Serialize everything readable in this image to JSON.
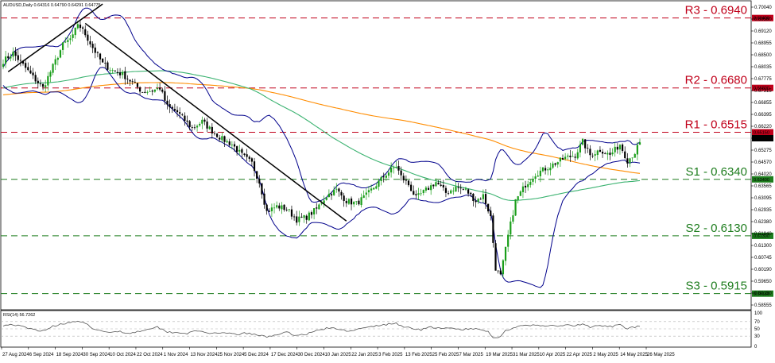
{
  "chart_data": [
    {
      "type": "candlestick",
      "header": "AUDUSD,Daily  0.64316 0.64790 0.64291 0.64775",
      "ylim": [
        0.5855,
        0.7004
      ],
      "y_ticks": [
        "0.70040",
        "0.69580",
        "0.69120",
        "0.68955",
        "0.68500",
        "0.68035",
        "0.67775",
        "0.67315",
        "0.66855",
        "0.66395",
        "0.66220",
        "0.65735",
        "0.65275",
        "0.64570",
        "0.64020",
        "0.63565",
        "0.63095",
        "0.62935",
        "0.62380",
        "0.61840",
        "0.61300",
        "0.60745",
        "0.60190",
        "0.59650",
        "0.59150",
        "0.58555"
      ],
      "price_tag": {
        "value": "0.64775",
        "price": 0.64775
      },
      "x_ticks": [
        "27 Aug 2024",
        "6 Sep 2024",
        "18 Sep 2024",
        "30 Sep 2024",
        "10 Oct 2024",
        "22 Oct 2024",
        "1 Nov 2024",
        "13 Nov 2024",
        "25 Nov 2024",
        "5 Dec 2024",
        "17 Dec 2024",
        "30 Dec 2024",
        "10 Jan 2025",
        "22 Jan 2025",
        "3 Feb 2025",
        "13 Feb 2025",
        "25 Feb 2025",
        "7 Mar 2025",
        "19 Mar 2025",
        "31 Mar 2025",
        "10 Apr 2025",
        "22 Apr 2025",
        "2 May 2025",
        "14 May 2025",
        "26 May 2025"
      ],
      "levels": [
        {
          "label": "R3 - 0.6940",
          "price": 0.694,
          "tag": "0.69400",
          "color": "#c0001a"
        },
        {
          "label": "R2 - 0.6680",
          "price": 0.668,
          "tag": "0.66800",
          "color": "#c0001a"
        },
        {
          "label": "R1 - 0.6515",
          "price": 0.6515,
          "tag": "0.65150",
          "color": "#c0001a"
        },
        {
          "label": "S1 - 0.6340",
          "price": 0.634,
          "tag": "0.63400",
          "color": "#1e7d1e"
        },
        {
          "label": "S2 - 0.6130",
          "price": 0.613,
          "tag": "0.61300",
          "color": "#1e7d1e"
        },
        {
          "label": "S3 - 0.5915",
          "price": 0.5915,
          "tag": "0.59150",
          "color": "#1e7d1e"
        }
      ],
      "anchors": [
        [
          0,
          0.678
        ],
        [
          4,
          0.681
        ],
        [
          8,
          0.6765
        ],
        [
          12,
          0.672
        ],
        [
          16,
          0.668
        ],
        [
          20,
          0.676
        ],
        [
          24,
          0.684
        ],
        [
          28,
          0.687
        ],
        [
          30,
          0.692
        ],
        [
          33,
          0.688
        ],
        [
          36,
          0.683
        ],
        [
          40,
          0.677
        ],
        [
          44,
          0.6745
        ],
        [
          48,
          0.673
        ],
        [
          52,
          0.67
        ],
        [
          56,
          0.6665
        ],
        [
          60,
          0.667
        ],
        [
          63,
          0.668
        ],
        [
          66,
          0.661
        ],
        [
          70,
          0.659
        ],
        [
          73,
          0.656
        ],
        [
          76,
          0.653
        ],
        [
          80,
          0.6555
        ],
        [
          84,
          0.652
        ],
        [
          88,
          0.649
        ],
        [
          92,
          0.647
        ],
        [
          96,
          0.643
        ],
        [
          100,
          0.64
        ],
        [
          103,
          0.633
        ],
        [
          106,
          0.622
        ],
        [
          110,
          0.624
        ],
        [
          114,
          0.623
        ],
        [
          118,
          0.619
        ],
        [
          122,
          0.62
        ],
        [
          126,
          0.623
        ],
        [
          130,
          0.628
        ],
        [
          134,
          0.63
        ],
        [
          138,
          0.626
        ],
        [
          142,
          0.625
        ],
        [
          146,
          0.628
        ],
        [
          150,
          0.632
        ],
        [
          154,
          0.636
        ],
        [
          158,
          0.639
        ],
        [
          160,
          0.635
        ],
        [
          163,
          0.632
        ],
        [
          166,
          0.627
        ],
        [
          170,
          0.63
        ],
        [
          174,
          0.633
        ],
        [
          178,
          0.629
        ],
        [
          182,
          0.631
        ],
        [
          186,
          0.63
        ],
        [
          190,
          0.626
        ],
        [
          193,
          0.628
        ],
        [
          196,
          0.62
        ],
        [
          198,
          0.601
        ],
        [
          200,
          0.598
        ],
        [
          203,
          0.613
        ],
        [
          206,
          0.626
        ],
        [
          210,
          0.632
        ],
        [
          214,
          0.636
        ],
        [
          218,
          0.638
        ],
        [
          222,
          0.64
        ],
        [
          226,
          0.642
        ],
        [
          230,
          0.643
        ],
        [
          233,
          0.648
        ],
        [
          236,
          0.643
        ],
        [
          240,
          0.645
        ],
        [
          244,
          0.643
        ],
        [
          248,
          0.647
        ],
        [
          251,
          0.641
        ],
        [
          254,
          0.644
        ],
        [
          256,
          0.6478
        ]
      ],
      "highlights": [
        [
          0.648,
          0.655
        ]
      ],
      "series": [
        {
          "name": "",
          "type": "sma",
          "period": 100,
          "color": "#3cb371"
        },
        {
          "name": "",
          "type": "sma",
          "period": 200,
          "color": "#ff8c00"
        },
        {
          "name": "",
          "type": "bollinger",
          "color": "#00008b"
        }
      ],
      "trendlines": [
        {
          "from": [
            2,
            0.674
          ],
          "to": [
            40,
            0.6992
          ],
          "color": "#000000"
        },
        {
          "from": [
            33,
            0.692
          ],
          "to": [
            138,
            0.6185
          ],
          "color": "#000000"
        }
      ]
    },
    {
      "type": "line",
      "title": "RSI(14) 56.7262",
      "ylim": [
        0,
        100
      ],
      "y_ticks": [
        "100",
        "70",
        "50",
        "30",
        "0"
      ],
      "levels": [
        70,
        50,
        30
      ],
      "rsi_value": 56.73,
      "rsi_anchors": [
        [
          0,
          60
        ],
        [
          4,
          62
        ],
        [
          8,
          55
        ],
        [
          12,
          48
        ],
        [
          16,
          45
        ],
        [
          20,
          57
        ],
        [
          24,
          65
        ],
        [
          28,
          68
        ],
        [
          30,
          72
        ],
        [
          34,
          60
        ],
        [
          38,
          45
        ],
        [
          42,
          40
        ],
        [
          46,
          44
        ],
        [
          50,
          38
        ],
        [
          54,
          42
        ],
        [
          58,
          50
        ],
        [
          62,
          55
        ],
        [
          66,
          42
        ],
        [
          70,
          40
        ],
        [
          74,
          38
        ],
        [
          78,
          44
        ],
        [
          82,
          40
        ],
        [
          86,
          36
        ],
        [
          90,
          38
        ],
        [
          94,
          35
        ],
        [
          98,
          38
        ],
        [
          102,
          33
        ],
        [
          106,
          28
        ],
        [
          110,
          35
        ],
        [
          114,
          40
        ],
        [
          118,
          32
        ],
        [
          122,
          36
        ],
        [
          126,
          45
        ],
        [
          130,
          52
        ],
        [
          134,
          50
        ],
        [
          138,
          45
        ],
        [
          142,
          48
        ],
        [
          146,
          53
        ],
        [
          150,
          58
        ],
        [
          154,
          62
        ],
        [
          158,
          65
        ],
        [
          160,
          58
        ],
        [
          164,
          52
        ],
        [
          168,
          48
        ],
        [
          172,
          55
        ],
        [
          176,
          50
        ],
        [
          180,
          52
        ],
        [
          184,
          48
        ],
        [
          188,
          50
        ],
        [
          192,
          48
        ],
        [
          195,
          42
        ],
        [
          197,
          28
        ],
        [
          199,
          25
        ],
        [
          202,
          45
        ],
        [
          206,
          55
        ],
        [
          210,
          58
        ],
        [
          214,
          60
        ],
        [
          218,
          59
        ],
        [
          222,
          57
        ],
        [
          226,
          60
        ],
        [
          230,
          58
        ],
        [
          233,
          63
        ],
        [
          236,
          55
        ],
        [
          240,
          58
        ],
        [
          244,
          56
        ],
        [
          248,
          60
        ],
        [
          251,
          52
        ],
        [
          254,
          55
        ],
        [
          256,
          56.7
        ]
      ]
    }
  ]
}
